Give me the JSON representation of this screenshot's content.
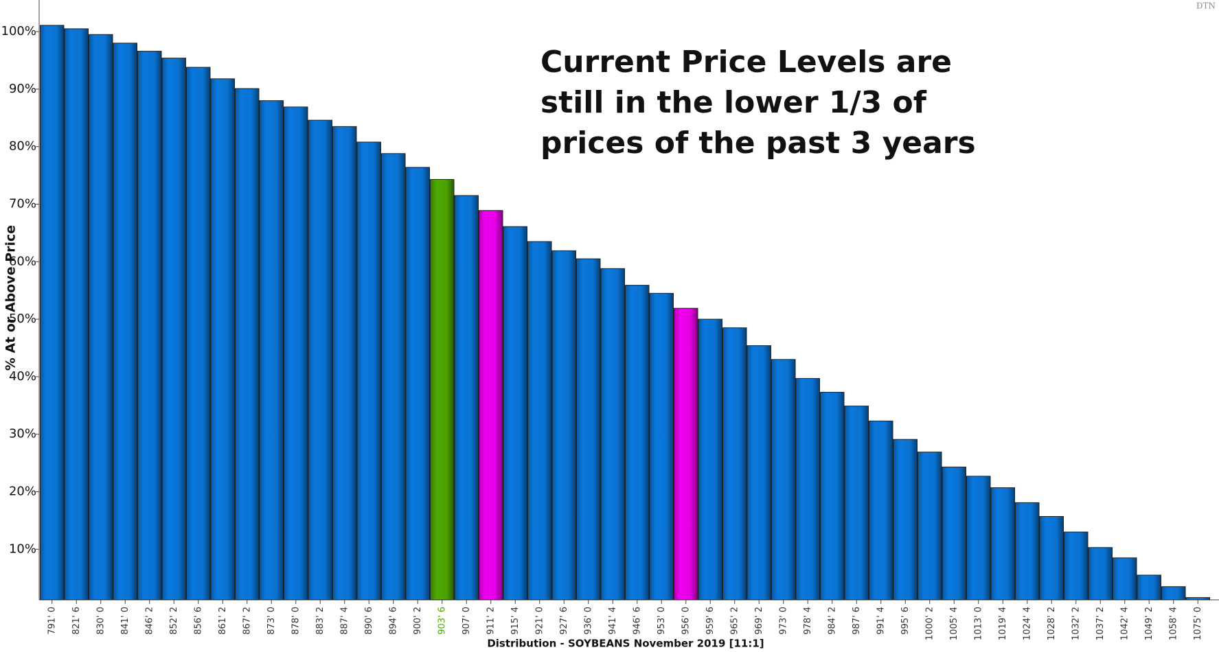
{
  "chart_data": {
    "type": "bar",
    "title": "Current Price Levels are still in the lower 1/3 of prices of the past 3 years",
    "watermark": "DTN",
    "x_label": "Distribution - SOYBEANS November 2019  [11:1]",
    "y_label": "% At or Above Price",
    "categories": [
      "791' 0",
      "821' 6",
      "830' 0",
      "841' 0",
      "846' 2",
      "852' 2",
      "856' 6",
      "861' 2",
      "867' 2",
      "873' 0",
      "878' 0",
      "883' 2",
      "887' 4",
      "890' 6",
      "894' 6",
      "900' 2",
      "903' 6",
      "907' 0",
      "911' 2",
      "915' 4",
      "921' 0",
      "927' 6",
      "936' 0",
      "941' 4",
      "946' 6",
      "953' 0",
      "956' 0",
      "959' 6",
      "965' 2",
      "969' 2",
      "973' 0",
      "978' 4",
      "984' 2",
      "987' 6",
      "991' 4",
      "995' 6",
      "1000' 2",
      "1005' 4",
      "1013' 0",
      "1019' 4",
      "1024' 4",
      "1028' 2",
      "1032' 2",
      "1037' 2",
      "1042' 4",
      "1049' 2",
      "1058' 4",
      "1075' 0"
    ],
    "values": [
      101.1,
      100.5,
      99.5,
      98.0,
      96.6,
      95.4,
      93.8,
      91.8,
      90.1,
      88.0,
      86.9,
      84.6,
      83.5,
      80.8,
      78.8,
      76.4,
      74.3,
      71.5,
      68.9,
      66.1,
      63.5,
      61.9,
      60.5,
      58.8,
      55.9,
      54.5,
      51.9,
      50.0,
      48.5,
      45.4,
      43.0,
      39.7,
      37.3,
      34.9,
      32.3,
      29.1,
      26.9,
      24.3,
      22.7,
      20.7,
      18.1,
      15.7,
      13.0,
      10.3,
      8.5,
      5.5,
      3.5,
      1.6
    ],
    "colors": [
      "#0a78dc",
      "#0a78dc",
      "#0a78dc",
      "#0a78dc",
      "#0a78dc",
      "#0a78dc",
      "#0a78dc",
      "#0a78dc",
      "#0a78dc",
      "#0a78dc",
      "#0a78dc",
      "#0a78dc",
      "#0a78dc",
      "#0a78dc",
      "#0a78dc",
      "#0a78dc",
      "#4fa800",
      "#0a78dc",
      "#f000f0",
      "#0a78dc",
      "#0a78dc",
      "#0a78dc",
      "#0a78dc",
      "#0a78dc",
      "#0a78dc",
      "#0a78dc",
      "#f000f0",
      "#0a78dc",
      "#0a78dc",
      "#0a78dc",
      "#0a78dc",
      "#0a78dc",
      "#0a78dc",
      "#0a78dc",
      "#0a78dc",
      "#0a78dc",
      "#0a78dc",
      "#0a78dc",
      "#0a78dc",
      "#0a78dc",
      "#0a78dc",
      "#0a78dc",
      "#0a78dc",
      "#0a78dc",
      "#0a78dc",
      "#0a78dc",
      "#0a78dc",
      "#0a78dc"
    ],
    "ylim": [
      1.2,
      105.5
    ],
    "yticks": [
      {
        "value": 10,
        "label": "10%"
      },
      {
        "value": 20,
        "label": "20%"
      },
      {
        "value": 30,
        "label": "30%"
      },
      {
        "value": 40,
        "label": "40%"
      },
      {
        "value": 50,
        "label": "50%"
      },
      {
        "value": 60,
        "label": "60%"
      },
      {
        "value": 70,
        "label": "70%"
      },
      {
        "value": 80,
        "label": "80%"
      },
      {
        "value": 90,
        "label": "90%"
      },
      {
        "value": 100,
        "label": "100%"
      }
    ]
  }
}
